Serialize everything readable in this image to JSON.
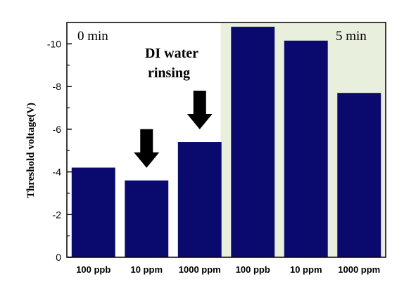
{
  "chart_data": {
    "type": "bar",
    "categories": [
      "100 ppb",
      "10 ppm",
      "1000 ppm",
      "100 ppb",
      "10 ppm",
      "1000 ppm"
    ],
    "values": [
      -4.2,
      -3.6,
      -5.4,
      -10.8,
      -10.15,
      -7.7
    ],
    "ylabel": "Threshold voltage(V)",
    "xlabel": "",
    "ylim": [
      0,
      -11
    ],
    "yticks": [
      0,
      -2,
      -4,
      -6,
      -8,
      -10
    ],
    "ytick_labels": [
      "0",
      "-2",
      "-4",
      "-6",
      "-8",
      "-10"
    ],
    "bar_color": "#0a0a6e",
    "shaded_region_color": "#e8efdc",
    "groups": [
      {
        "label": "0 min",
        "category_indices": [
          0,
          1,
          2
        ]
      },
      {
        "label": "5 min",
        "category_indices": [
          3,
          4,
          5
        ]
      }
    ],
    "annotation": {
      "line1": "DI water",
      "line2": "rinsing",
      "arrows_above_categories": [
        1,
        2
      ]
    },
    "grid": false
  }
}
